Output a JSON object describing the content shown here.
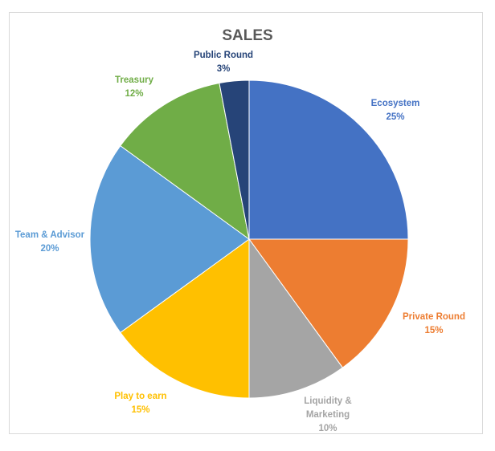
{
  "chart_data": {
    "type": "pie",
    "title": "SALES",
    "start_angle_deg": 0,
    "direction": "clockwise",
    "slices": [
      {
        "name": "Ecosystem",
        "value": 25,
        "value_label": "25%",
        "color": "#4472C4"
      },
      {
        "name": "Private Round",
        "value": 15,
        "value_label": "15%",
        "color": "#ED7D31"
      },
      {
        "name": "Liquidity & Marketing",
        "value": 10,
        "value_label": "10%",
        "color": "#A5A5A5"
      },
      {
        "name": "Play to earn",
        "value": 15,
        "value_label": "15%",
        "color": "#FFC000"
      },
      {
        "name": "Team & Advisor",
        "value": 20,
        "value_label": "20%",
        "color": "#5B9BD5"
      },
      {
        "name": "Treasury",
        "value": 12,
        "value_label": "12%",
        "color": "#70AD47"
      },
      {
        "name": "Public Round",
        "value": 3,
        "value_label": "3%",
        "color": "#264478"
      }
    ],
    "legend": "none",
    "data_labels": "outside, category name and percent"
  }
}
